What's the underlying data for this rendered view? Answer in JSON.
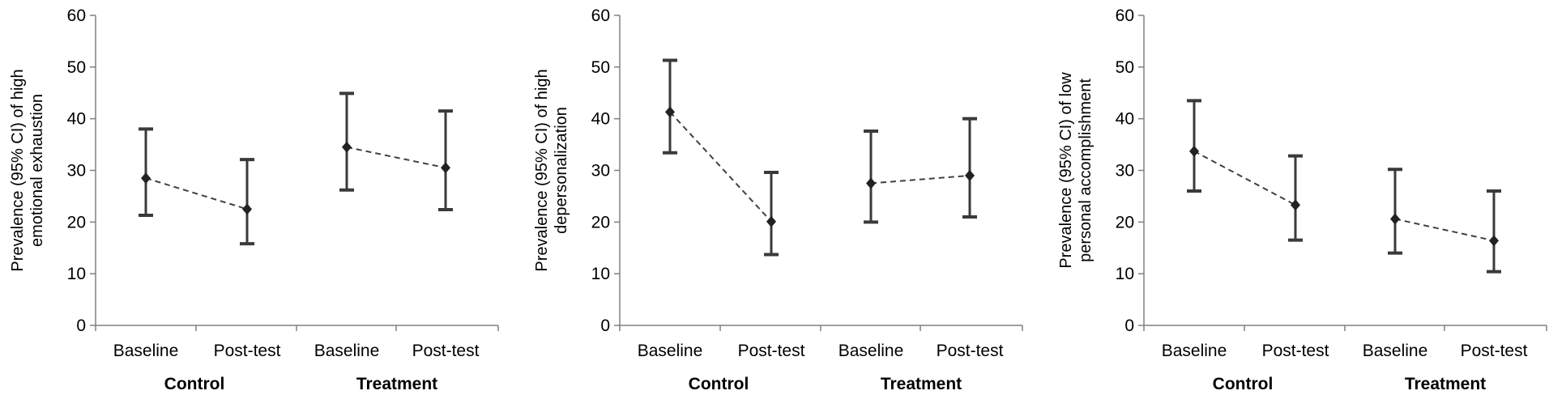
{
  "chart_data": [
    {
      "type": "scatter",
      "ylabel_lines": [
        "Prevalence (95% CI) of high",
        "emotional exhaustion"
      ],
      "categories": [
        "Baseline",
        "Post-test",
        "Baseline",
        "Post-test"
      ],
      "groups": [
        "Control",
        "Treatment"
      ],
      "ylim": [
        0,
        60
      ],
      "yticks": [
        "0",
        "10",
        "20",
        "30",
        "40",
        "50",
        "60"
      ],
      "series": [
        {
          "name": "Control",
          "points": [
            {
              "value": 28.5,
              "lower": 21.3,
              "upper": 38.0
            },
            {
              "value": 22.5,
              "lower": 15.8,
              "upper": 32.1
            }
          ]
        },
        {
          "name": "Treatment",
          "points": [
            {
              "value": 34.5,
              "lower": 26.2,
              "upper": 44.9
            },
            {
              "value": 30.5,
              "lower": 22.4,
              "upper": 41.5
            }
          ]
        }
      ]
    },
    {
      "type": "scatter",
      "ylabel_lines": [
        "Prevalence (95% CI) of high",
        "depersonalization"
      ],
      "categories": [
        "Baseline",
        "Post-test",
        "Baseline",
        "Post-test"
      ],
      "groups": [
        "Control",
        "Treatment"
      ],
      "ylim": [
        0,
        60
      ],
      "yticks": [
        "0",
        "10",
        "20",
        "30",
        "40",
        "50",
        "60"
      ],
      "series": [
        {
          "name": "Control",
          "points": [
            {
              "value": 41.3,
              "lower": 33.4,
              "upper": 51.3
            },
            {
              "value": 20.1,
              "lower": 13.7,
              "upper": 29.6
            }
          ]
        },
        {
          "name": "Treatment",
          "points": [
            {
              "value": 27.5,
              "lower": 20.0,
              "upper": 37.6
            },
            {
              "value": 29.0,
              "lower": 21.0,
              "upper": 40.0
            }
          ]
        }
      ]
    },
    {
      "type": "scatter",
      "ylabel_lines": [
        "Prevalence (95% CI) of low",
        "personal accomplishment"
      ],
      "categories": [
        "Baseline",
        "Post-test",
        "Baseline",
        "Post-test"
      ],
      "groups": [
        "Control",
        "Treatment"
      ],
      "ylim": [
        0,
        60
      ],
      "yticks": [
        "0",
        "10",
        "20",
        "30",
        "40",
        "50",
        "60"
      ],
      "series": [
        {
          "name": "Control",
          "points": [
            {
              "value": 33.7,
              "lower": 26.0,
              "upper": 43.5
            },
            {
              "value": 23.3,
              "lower": 16.5,
              "upper": 32.8
            }
          ]
        },
        {
          "name": "Treatment",
          "points": [
            {
              "value": 20.6,
              "lower": 14.0,
              "upper": 30.2
            },
            {
              "value": 16.4,
              "lower": 10.4,
              "upper": 26.0
            }
          ]
        }
      ]
    }
  ]
}
